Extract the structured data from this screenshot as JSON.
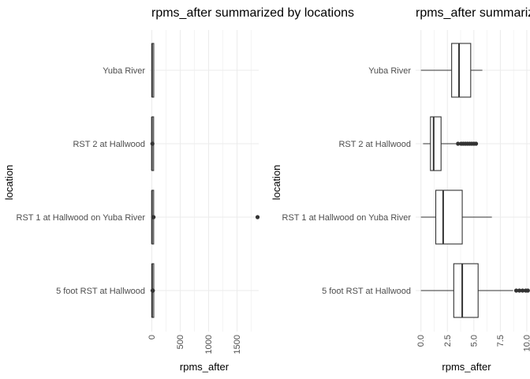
{
  "chart_data": [
    {
      "type": "boxplot",
      "orientation": "horizontal",
      "title": "rpms_after summarized by locations",
      "xlabel": "rpms_after",
      "ylabel": "location",
      "xlim": [
        -35,
        1880
      ],
      "x_ticks": [
        0,
        500,
        1000,
        1500
      ],
      "x_tick_labels": [
        "0",
        "500",
        "1000",
        "1500"
      ],
      "x_minor_ticks": [
        250,
        750,
        1250,
        1750
      ],
      "categories": [
        "Yuba River",
        "RST 2 at Hallwood",
        "RST 1 at Hallwood on Yuba River",
        "5 foot RST at Hallwood"
      ],
      "boxes": [
        {
          "category": "Yuba River",
          "min": 0,
          "q1": 2.9,
          "median": 3.6,
          "q3": 4.7,
          "max": 5.8,
          "outliers": []
        },
        {
          "category": "RST 2 at Hallwood",
          "min": 0.2,
          "q1": 0.9,
          "median": 1.2,
          "q3": 1.9,
          "max": 3.3,
          "outliers": [
            10
          ]
        },
        {
          "category": "RST 1 at Hallwood on Yuba River",
          "min": 0,
          "q1": 1.4,
          "median": 2.1,
          "q3": 3.9,
          "max": 6.7,
          "outliers": [
            30,
            1860
          ]
        },
        {
          "category": "5 foot RST at Hallwood",
          "min": 0,
          "q1": 3.1,
          "median": 3.9,
          "q3": 5.4,
          "max": 8.7,
          "outliers": [
            14,
            18
          ]
        }
      ],
      "grid": true
    },
    {
      "type": "boxplot",
      "orientation": "horizontal",
      "title": "rpms_after summarized by locations",
      "xlabel": "rpms_after",
      "ylabel": "location",
      "xlim": [
        -0.5,
        10.3
      ],
      "x_ticks": [
        0,
        2.5,
        5,
        7.5,
        10
      ],
      "x_tick_labels": [
        "0.0",
        "2.5",
        "5.0",
        "7.5",
        "10.0"
      ],
      "x_minor_ticks": [
        1.25,
        3.75,
        6.25,
        8.75
      ],
      "categories": [
        "Yuba River",
        "RST 2 at Hallwood",
        "RST 1 at Hallwood on Yuba River",
        "5 foot RST at Hallwood"
      ],
      "boxes": [
        {
          "category": "Yuba River",
          "min": 0,
          "q1": 2.9,
          "median": 3.6,
          "q3": 4.7,
          "max": 5.8,
          "outliers": []
        },
        {
          "category": "RST 2 at Hallwood",
          "min": 0.2,
          "q1": 0.9,
          "median": 1.2,
          "q3": 1.9,
          "max": 3.3,
          "outliers": [
            3.5,
            3.8,
            4.0,
            4.2,
            4.4,
            4.6,
            4.8,
            5.0,
            5.2
          ]
        },
        {
          "category": "RST 1 at Hallwood on Yuba River",
          "min": 0,
          "q1": 1.4,
          "median": 2.1,
          "q3": 3.9,
          "max": 6.7,
          "outliers": []
        },
        {
          "category": "5 foot RST at Hallwood",
          "min": 0,
          "q1": 3.1,
          "median": 3.9,
          "q3": 5.4,
          "max": 8.7,
          "outliers": [
            9.0,
            9.3,
            9.6,
            9.9,
            10.1
          ]
        }
      ],
      "grid": true
    }
  ]
}
